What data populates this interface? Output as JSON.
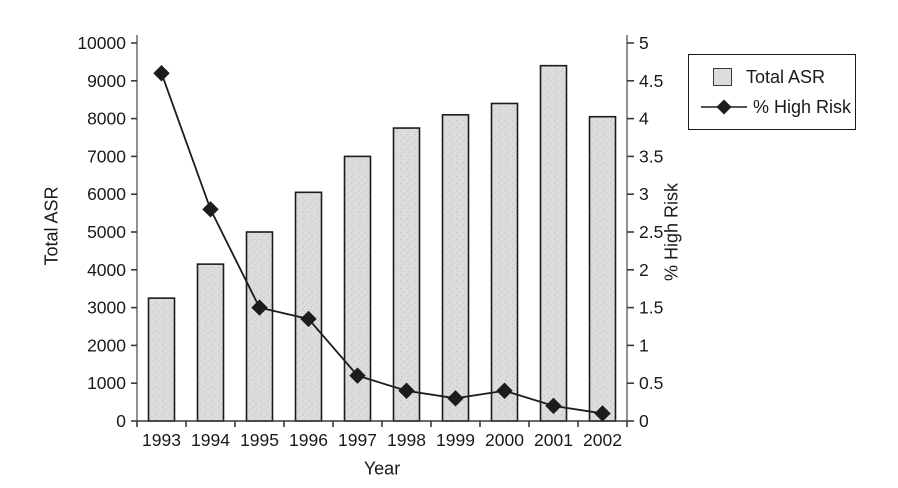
{
  "chart_data": {
    "type": "bar+line",
    "categories": [
      "1993",
      "1994",
      "1995",
      "1996",
      "1997",
      "1998",
      "1999",
      "2000",
      "2001",
      "2002"
    ],
    "series": [
      {
        "name": "Total ASR",
        "type": "bar",
        "axis": "left",
        "values": [
          3250,
          4150,
          5000,
          6050,
          7000,
          7750,
          8100,
          8400,
          9400,
          8050
        ]
      },
      {
        "name": "% High Risk",
        "type": "line",
        "marker": "diamond",
        "axis": "right",
        "values": [
          4.6,
          2.8,
          1.5,
          1.35,
          0.6,
          0.4,
          0.3,
          0.4,
          0.2,
          0.1
        ]
      }
    ],
    "x_axis": {
      "label": "Year"
    },
    "left_axis": {
      "label": "Total ASR",
      "min": 0,
      "max": 10000,
      "tick_step": 1000,
      "tick_labels": [
        "0",
        "1000",
        "2000",
        "3000",
        "4000",
        "5000",
        "6000",
        "7000",
        "8000",
        "9000",
        "10000"
      ]
    },
    "right_axis": {
      "label": "% High Risk",
      "min": 0,
      "max": 5,
      "tick_step": 0.5,
      "tick_labels": [
        "0",
        "0.5",
        "1",
        "1.5",
        "2",
        "2.5",
        "3",
        "3.5",
        "4",
        "4.5",
        "5"
      ]
    },
    "legend": {
      "position": "top-right",
      "entries": [
        "Total ASR",
        "% High Risk"
      ]
    },
    "grid": false,
    "colors": {
      "bar_fill": "#dcdcdc",
      "bar_border": "#1c1c1c",
      "line": "#1c1c1c",
      "marker": "#1c1c1c",
      "axis_spine": "#919191",
      "axis_line": "#3a3a3a",
      "text": "#1a1a1a",
      "legend_border": "#1a1a1a"
    }
  }
}
